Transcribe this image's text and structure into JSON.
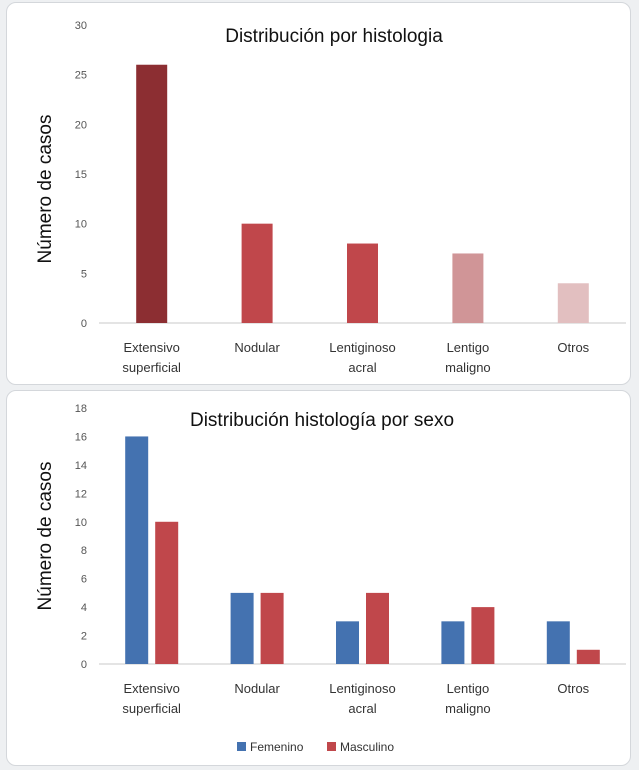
{
  "chart_data": [
    {
      "type": "bar",
      "title": "Distribución por histologia",
      "ylabel": "Número de casos",
      "xlabel": "",
      "ylim": [
        0,
        30
      ],
      "yticks": [
        0,
        5,
        10,
        15,
        20,
        25,
        30
      ],
      "categories": [
        [
          "Extensivo",
          "superficial"
        ],
        [
          "Nodular"
        ],
        [
          "Lentiginoso",
          "acral"
        ],
        [
          "Lentigo",
          "maligno"
        ],
        [
          "Otros"
        ]
      ],
      "values": [
        26,
        10,
        8,
        7,
        4
      ],
      "colors": [
        "#8c2e32",
        "#c0474b",
        "#c0474b",
        "#d09597",
        "#e2bfc0"
      ],
      "grid": false,
      "legend": "none"
    },
    {
      "type": "bar",
      "title": "Distribución histología por sexo",
      "ylabel": "Número de casos",
      "xlabel": "",
      "ylim": [
        0,
        18
      ],
      "yticks": [
        0,
        2,
        4,
        6,
        8,
        10,
        12,
        14,
        16,
        18
      ],
      "categories": [
        [
          "Extensivo",
          "superficial"
        ],
        [
          "Nodular"
        ],
        [
          "Lentiginoso",
          "acral"
        ],
        [
          "Lentigo",
          "maligno"
        ],
        [
          "Otros"
        ]
      ],
      "series": [
        {
          "name": "Femenino",
          "values": [
            16,
            5,
            3,
            3,
            3
          ],
          "color": "#4472b0"
        },
        {
          "name": "Masculino",
          "values": [
            10,
            5,
            5,
            4,
            1
          ],
          "color": "#c0474b"
        }
      ],
      "grid": false,
      "legend": "bottom"
    }
  ]
}
